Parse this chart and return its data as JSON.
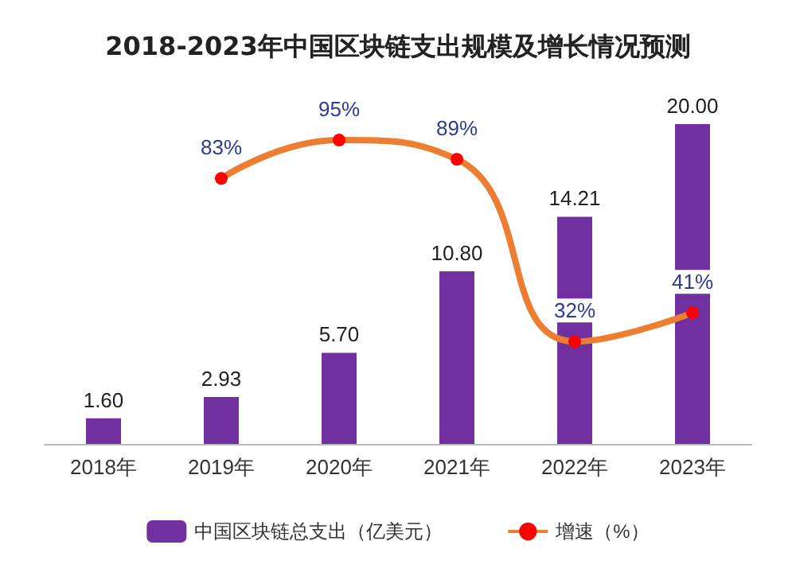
{
  "chart_data": {
    "type": "bar",
    "title": "2018-2023年中国区块链支出规模及增长情况预测",
    "categories": [
      "2018年",
      "2019年",
      "2020年",
      "2021年",
      "2022年",
      "2023年"
    ],
    "legend": "bottom",
    "series": [
      {
        "name": "中国区块链总支出（亿美元）",
        "color": "#7030a0",
        "values": [
          1.6,
          2.93,
          5.7,
          10.8,
          14.21,
          20.0
        ],
        "value_labels": [
          "1.60",
          "2.93",
          "5.70",
          "10.80",
          "14.21",
          "20.00"
        ]
      },
      {
        "name": "增速（%）",
        "type": "line",
        "axis": "y2",
        "color": "#ed7d31",
        "marker": "circle",
        "values": [
          null,
          83,
          95,
          89,
          32,
          41
        ],
        "value_labels": [
          null,
          "83%",
          "95%",
          "89%",
          "32%",
          "41%"
        ]
      }
    ]
  }
}
